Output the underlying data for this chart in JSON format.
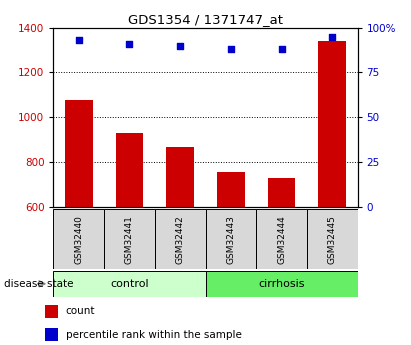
{
  "title": "GDS1354 / 1371747_at",
  "categories": [
    "GSM32440",
    "GSM32441",
    "GSM32442",
    "GSM32443",
    "GSM32444",
    "GSM32445"
  ],
  "count_values": [
    1075,
    930,
    868,
    755,
    728,
    1340
  ],
  "percentile_values": [
    93,
    91,
    90,
    88,
    88,
    95
  ],
  "ylim_left": [
    600,
    1400
  ],
  "ylim_right": [
    0,
    100
  ],
  "yticks_left": [
    600,
    800,
    1000,
    1200,
    1400
  ],
  "yticks_right": [
    0,
    25,
    50,
    75,
    100
  ],
  "ytick_labels_right": [
    "0",
    "25",
    "50",
    "75",
    "100%"
  ],
  "bar_color": "#cc0000",
  "scatter_color": "#0000cc",
  "group_labels": [
    "control",
    "cirrhosis"
  ],
  "group_ranges": [
    [
      0,
      3
    ],
    [
      3,
      6
    ]
  ],
  "group_colors_light": "#ccffcc",
  "group_colors_dark": "#66ee66",
  "grid_color": "black",
  "bg_color": "#d8d8d8",
  "disease_state_label": "disease state",
  "legend_items": [
    {
      "color": "#cc0000",
      "label": "count"
    },
    {
      "color": "#0000cc",
      "label": "percentile rank within the sample"
    }
  ]
}
